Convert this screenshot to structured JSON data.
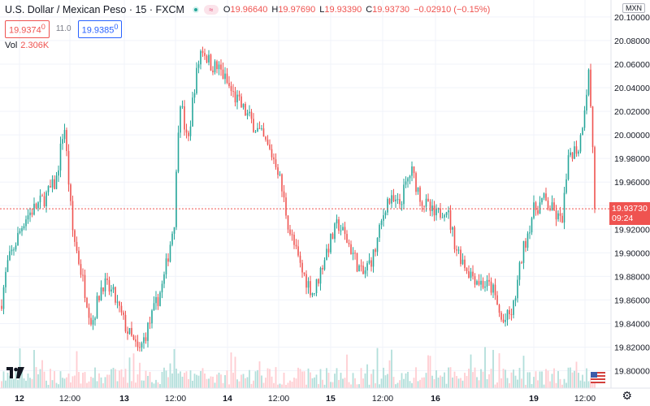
{
  "header": {
    "title": "U.S. Dollar / Mexican Peso · 15 · FXCM",
    "eye_label": "≈",
    "ohlc": [
      {
        "key": "O",
        "value": "19.96640"
      },
      {
        "key": "H",
        "value": "19.97690"
      },
      {
        "key": "L",
        "value": "19.93390"
      },
      {
        "key": "C",
        "value": "19.93730"
      },
      {
        "key": "",
        "value": "−0.02910 (−0.15%)"
      }
    ],
    "sell_price": "19.9374",
    "sell_price_sup": "0",
    "spread": "11.0",
    "buy_price": "19.9385",
    "buy_price_sup": "0",
    "volume_label": "Vol",
    "volume_value": "2.306K"
  },
  "currency_button": "MXN",
  "current_price": {
    "value": "19.93730",
    "countdown": "09:24"
  },
  "colors": {
    "up": "#26a69a",
    "down": "#ef5350",
    "up_volume": "#b2dfdb",
    "down_volume": "#ffcdd2",
    "grid": "#f0f3fa"
  },
  "icons": [
    "tradingview-logo-icon",
    "us-flag-icon",
    "settings-gear-icon"
  ],
  "chart_data": {
    "type": "candlestick",
    "y_ticks": [
      "20.10000",
      "20.08000",
      "20.06000",
      "20.04000",
      "20.02000",
      "20.00000",
      "19.98000",
      "19.96000",
      "19.94000",
      "19.92000",
      "19.90000",
      "19.88000",
      "19.86000",
      "19.84000",
      "19.82000",
      "19.80000"
    ],
    "x_ticks": [
      "12",
      "12:00",
      "13",
      "12:00",
      "14",
      "12:00",
      "15",
      "12:00",
      "16",
      "19",
      "12:00"
    ],
    "close_path": [
      {
        "t": 0,
        "p": 19.855
      },
      {
        "t": 8,
        "p": 19.89
      },
      {
        "t": 30,
        "p": 19.93
      },
      {
        "t": 52,
        "p": 19.945
      },
      {
        "t": 68,
        "p": 19.96
      },
      {
        "t": 78,
        "p": 20.01
      },
      {
        "t": 88,
        "p": 19.92
      },
      {
        "t": 100,
        "p": 19.88
      },
      {
        "t": 112,
        "p": 19.84
      },
      {
        "t": 125,
        "p": 19.875
      },
      {
        "t": 138,
        "p": 19.865
      },
      {
        "t": 155,
        "p": 19.835
      },
      {
        "t": 170,
        "p": 19.815
      },
      {
        "t": 188,
        "p": 19.85
      },
      {
        "t": 200,
        "p": 19.875
      },
      {
        "t": 214,
        "p": 19.93
      },
      {
        "t": 220,
        "p": 20.035
      },
      {
        "t": 230,
        "p": 19.99
      },
      {
        "t": 238,
        "p": 20.04
      },
      {
        "t": 247,
        "p": 20.075
      },
      {
        "t": 258,
        "p": 20.06
      },
      {
        "t": 270,
        "p": 20.055
      },
      {
        "t": 285,
        "p": 20.035
      },
      {
        "t": 300,
        "p": 20.02
      },
      {
        "t": 320,
        "p": 20.0
      },
      {
        "t": 340,
        "p": 19.975
      },
      {
        "t": 355,
        "p": 19.92
      },
      {
        "t": 370,
        "p": 19.885
      },
      {
        "t": 385,
        "p": 19.865
      },
      {
        "t": 400,
        "p": 19.9
      },
      {
        "t": 415,
        "p": 19.925
      },
      {
        "t": 430,
        "p": 19.905
      },
      {
        "t": 445,
        "p": 19.88
      },
      {
        "t": 460,
        "p": 19.9
      },
      {
        "t": 475,
        "p": 19.945
      },
      {
        "t": 490,
        "p": 19.94
      },
      {
        "t": 505,
        "p": 19.97
      },
      {
        "t": 518,
        "p": 19.945
      },
      {
        "t": 535,
        "p": 19.93
      },
      {
        "t": 548,
        "p": 19.94
      },
      {
        "t": 560,
        "p": 19.905
      },
      {
        "t": 575,
        "p": 19.885
      },
      {
        "t": 590,
        "p": 19.875
      },
      {
        "t": 605,
        "p": 19.87
      },
      {
        "t": 617,
        "p": 19.84
      },
      {
        "t": 630,
        "p": 19.85
      },
      {
        "t": 642,
        "p": 19.9
      },
      {
        "t": 655,
        "p": 19.935
      },
      {
        "t": 668,
        "p": 19.945
      },
      {
        "t": 680,
        "p": 19.935
      },
      {
        "t": 690,
        "p": 19.925
      },
      {
        "t": 700,
        "p": 19.985
      },
      {
        "t": 712,
        "p": 19.99
      },
      {
        "t": 724,
        "p": 20.055
      },
      {
        "t": 732,
        "p": 19.9373
      }
    ],
    "last_close": 19.9373,
    "y_range": [
      19.7935,
      20.1075
    ]
  }
}
